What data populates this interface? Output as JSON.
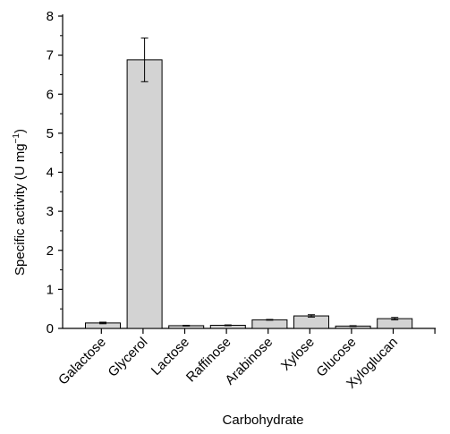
{
  "chart_data": {
    "type": "bar",
    "title": "",
    "xlabel": "Carbohydrate",
    "ylabel": {
      "text": "Specific activity (U mg",
      "sup": "−1",
      "tail": ")"
    },
    "categories": [
      "Galactose",
      "Glycerol",
      "Lactose",
      "Raffinose",
      "Arabinose",
      "Xylose",
      "Glucose",
      "Xyloglucan"
    ],
    "values": [
      0.14,
      6.88,
      0.07,
      0.08,
      0.22,
      0.32,
      0.06,
      0.25
    ],
    "errors": [
      0.02,
      0.56,
      0.01,
      0.01,
      0.01,
      0.03,
      0.01,
      0.03
    ],
    "ylim": [
      0,
      8
    ],
    "yticks": [
      "0",
      "1",
      "2",
      "3",
      "4",
      "5",
      "6",
      "7",
      "8"
    ],
    "grid": false,
    "legend": "none",
    "colors": {
      "bar_fill": "#d3d3d3",
      "bar_stroke": "#000000",
      "axis": "#000000"
    }
  }
}
